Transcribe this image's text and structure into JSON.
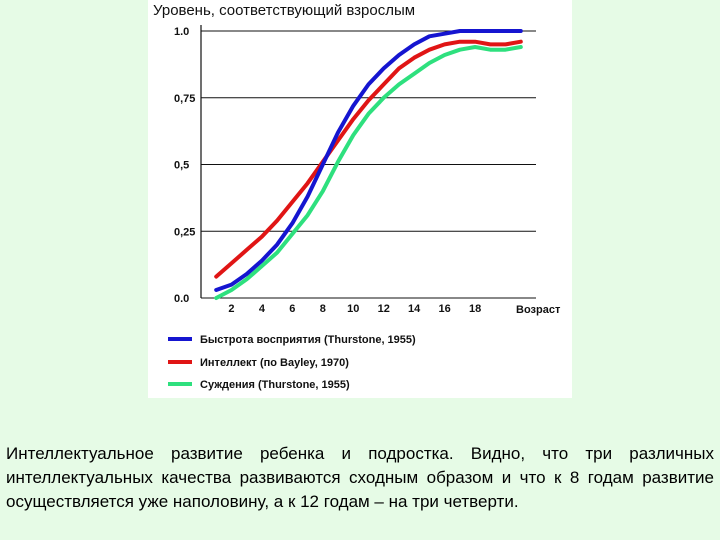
{
  "chart_data": {
    "type": "line",
    "ylabel": "Уровень, соответствующий взрослым",
    "xlabel": "Возраст",
    "x_ticks": [
      "2",
      "4",
      "6",
      "8",
      "10",
      "12",
      "14",
      "16",
      "18"
    ],
    "y_ticks": [
      "1.0",
      "0,75",
      "0,5",
      "0,25",
      "0.0"
    ],
    "xlim": [
      0,
      22
    ],
    "ylim": [
      0,
      1
    ],
    "grid": "horizontal",
    "legend_position": "bottom",
    "series": [
      {
        "name": "Быстрота восприятия (Thurstone, 1955)",
        "color": "#1515D0",
        "x": [
          1,
          2,
          3,
          4,
          5,
          6,
          7,
          8,
          9,
          10,
          11,
          12,
          13,
          14,
          15,
          16,
          17,
          18,
          19,
          20,
          21
        ],
        "values": [
          0.03,
          0.05,
          0.09,
          0.14,
          0.2,
          0.28,
          0.38,
          0.5,
          0.62,
          0.72,
          0.8,
          0.86,
          0.91,
          0.95,
          0.98,
          0.99,
          1.0,
          1.0,
          1.0,
          1.0,
          1.0
        ]
      },
      {
        "name": "Интеллект (по Bayley, 1970)",
        "color": "#E01515",
        "x": [
          1,
          2,
          3,
          4,
          5,
          6,
          7,
          8,
          9,
          10,
          11,
          12,
          13,
          14,
          15,
          16,
          17,
          18,
          19,
          20,
          21
        ],
        "values": [
          0.08,
          0.13,
          0.18,
          0.23,
          0.29,
          0.36,
          0.43,
          0.51,
          0.59,
          0.67,
          0.74,
          0.8,
          0.86,
          0.9,
          0.93,
          0.95,
          0.96,
          0.96,
          0.95,
          0.95,
          0.96
        ]
      },
      {
        "name": "Суждения (Thurstone, 1955)",
        "color": "#2EE07E",
        "x": [
          1,
          2,
          3,
          4,
          5,
          6,
          7,
          8,
          9,
          10,
          11,
          12,
          13,
          14,
          15,
          16,
          17,
          18,
          19,
          20,
          21
        ],
        "values": [
          0.0,
          0.03,
          0.07,
          0.12,
          0.17,
          0.24,
          0.31,
          0.4,
          0.51,
          0.61,
          0.69,
          0.75,
          0.8,
          0.84,
          0.88,
          0.91,
          0.93,
          0.94,
          0.93,
          0.93,
          0.94
        ]
      }
    ]
  },
  "caption": "Интеллектуальное развитие ребенка и подростка. Видно, что три различных интеллектуальных качества развиваются сходным образом и что к 8 годам развитие осуществляется уже наполовину, а к 12 годам – на три четверти."
}
